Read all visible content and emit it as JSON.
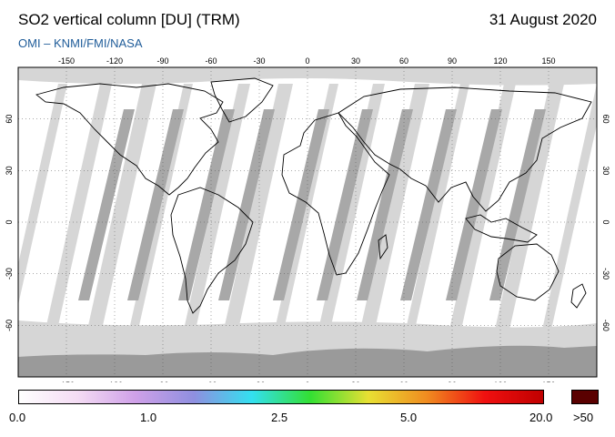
{
  "header": {
    "title": "SO2 vertical column [DU] (TRM)",
    "date": "31 August 2020",
    "credit": "OMI  –  KNMI/FMI/NASA"
  },
  "map": {
    "lon_ticks": [
      "-150",
      "-120",
      "-90",
      "-60",
      "-30",
      "0",
      "30",
      "60",
      "90",
      "120",
      "150"
    ],
    "lat_ticks": [
      "60",
      "30",
      "0",
      "-30",
      "-60"
    ],
    "colors": {
      "no_data": "#d6d6d6",
      "swath_overlap": "#a8a8a8",
      "antarctica": "#9a9a9a",
      "background": "#ffffff",
      "coastline": "#000000"
    }
  },
  "colorbar": {
    "labels": [
      "0.0",
      "1.0",
      "2.5",
      "5.0",
      "20.0",
      ">50"
    ],
    "gradient": [
      "#ffffff",
      "#f4dcf4",
      "#cfa0e8",
      "#8f8fe0",
      "#33e0f0",
      "#33e033",
      "#e8e033",
      "#f08c20",
      "#f01010",
      "#c00000"
    ],
    "overflow_color": "#5a0000"
  }
}
